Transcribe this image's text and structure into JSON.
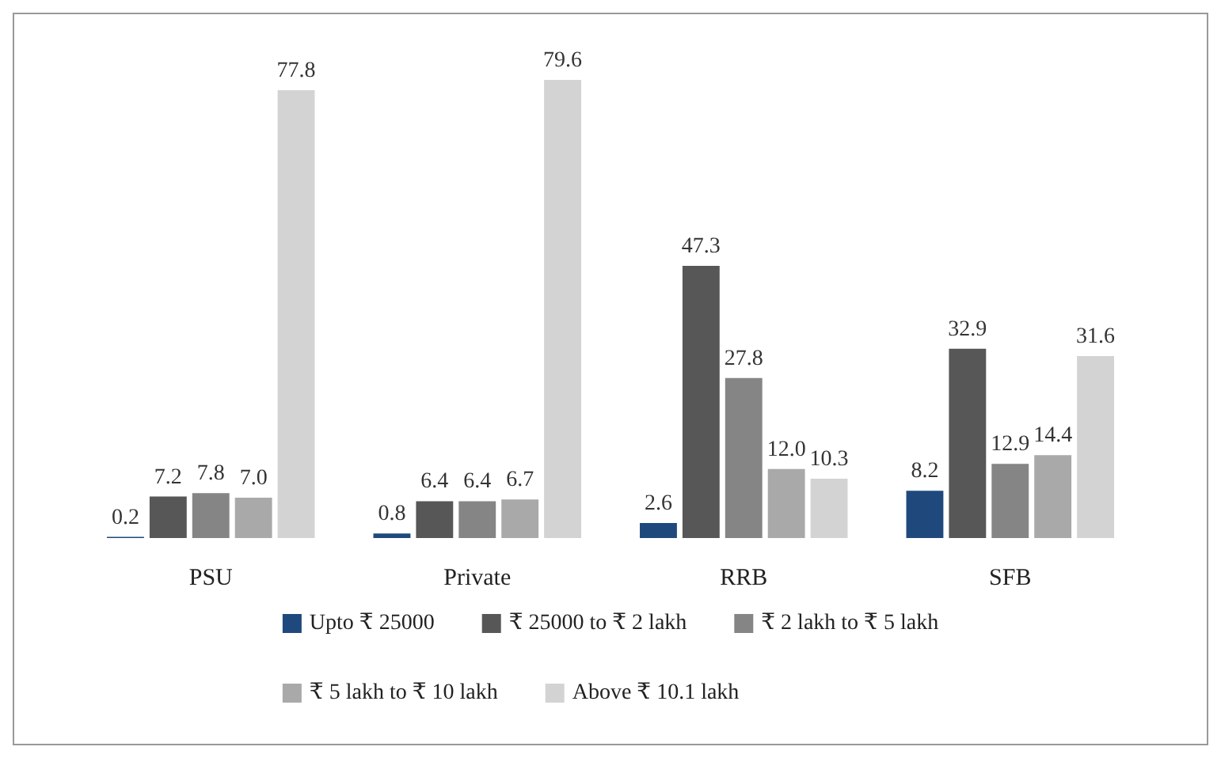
{
  "chart_data": {
    "type": "bar",
    "categories": [
      "PSU",
      "Private",
      "RRB",
      "SFB"
    ],
    "series": [
      {
        "name": "Upto ₹ 25000",
        "color": "#1f497d",
        "values": [
          0.2,
          0.8,
          2.6,
          8.2
        ],
        "value_labels": [
          "0.2",
          "0.8",
          "2.6",
          "8.2"
        ]
      },
      {
        "name": "₹ 25000 to ₹ 2 lakh",
        "color": "#575757",
        "values": [
          7.2,
          6.4,
          47.3,
          32.9
        ],
        "value_labels": [
          "7.2",
          "6.4",
          "47.3",
          "32.9"
        ]
      },
      {
        "name": "₹ 2 lakh to ₹ 5 lakh",
        "color": "#858585",
        "values": [
          7.8,
          6.4,
          27.8,
          12.9
        ],
        "value_labels": [
          "7.8",
          "6.4",
          "27.8",
          "12.9"
        ]
      },
      {
        "name": "₹ 5 lakh to ₹ 10 lakh",
        "color": "#a9a9a9",
        "values": [
          7.0,
          6.7,
          12.0,
          14.4
        ],
        "value_labels": [
          "7.0",
          "6.7",
          "12.0",
          "14.4"
        ]
      },
      {
        "name": "Above ₹ 10.1 lakh",
        "color": "#d3d3d3",
        "values": [
          77.8,
          79.6,
          10.3,
          31.6
        ],
        "value_labels": [
          "77.8",
          "79.6",
          "10.3",
          "31.6"
        ]
      }
    ],
    "legend": "bottom"
  }
}
